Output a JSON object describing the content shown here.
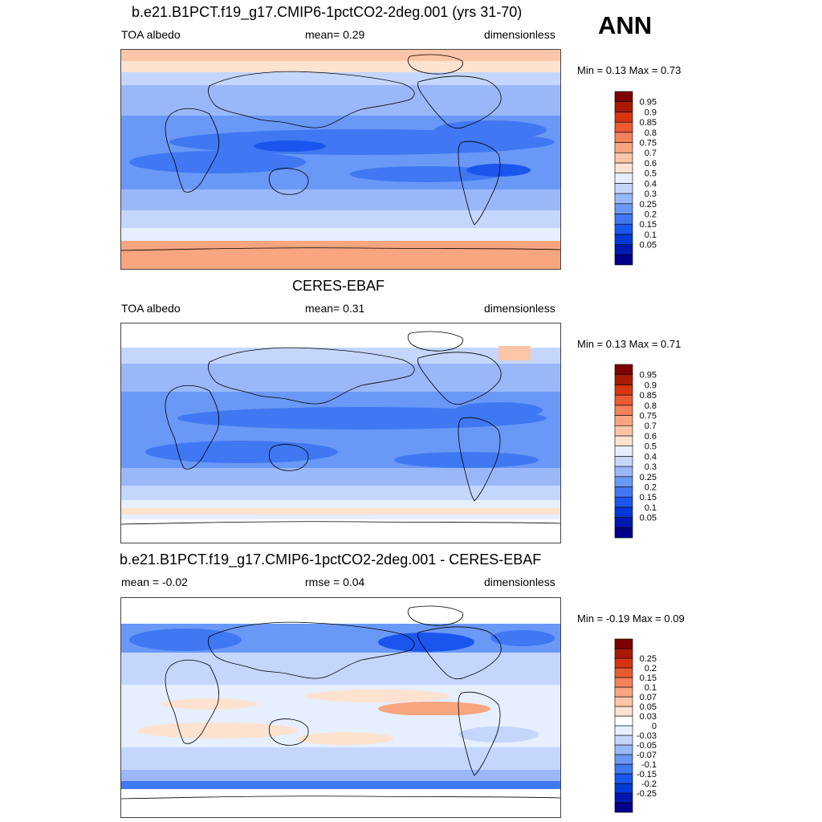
{
  "season": "ANN",
  "panels": [
    {
      "title": "b.e21.B1PCT.f19_g17.CMIP6-1pctCO2-2deg.001 (yrs 31-70)",
      "left_text": "TOA albedo",
      "center_text": "mean=   0.29",
      "right_text": "dimensionless",
      "minmax": "Min =   0.13 Max =   0.73",
      "colorbar": {
        "colors": [
          "#00008b",
          "#0018b0",
          "#0039d6",
          "#1a56ee",
          "#3f78f2",
          "#6a98f6",
          "#9ab8f9",
          "#c4d6fb",
          "#e6efff",
          "#fde2cf",
          "#fcc5a7",
          "#f9a57f",
          "#f4825a",
          "#ea5a33",
          "#d73511",
          "#a81a06",
          "#7c0100"
        ],
        "labels": [
          "0.05",
          "0.1",
          "0.15",
          "0.2",
          "0.25",
          "0.3",
          "0.4",
          "0.5",
          "0.6",
          "0.7",
          "0.75",
          "0.8",
          "0.85",
          "0.9",
          "0.95"
        ]
      }
    },
    {
      "title": "CERES-EBAF",
      "left_text": "TOA albedo",
      "center_text": "mean=   0.31",
      "right_text": "dimensionless",
      "minmax": "Min =   0.13 Max =   0.71",
      "colorbar": {
        "colors": [
          "#00008b",
          "#0018b0",
          "#0039d6",
          "#1a56ee",
          "#3f78f2",
          "#6a98f6",
          "#9ab8f9",
          "#c4d6fb",
          "#e6efff",
          "#fde2cf",
          "#fcc5a7",
          "#f9a57f",
          "#f4825a",
          "#ea5a33",
          "#d73511",
          "#a81a06",
          "#7c0100"
        ],
        "labels": [
          "0.05",
          "0.1",
          "0.15",
          "0.2",
          "0.25",
          "0.3",
          "0.4",
          "0.5",
          "0.6",
          "0.7",
          "0.75",
          "0.8",
          "0.85",
          "0.9",
          "0.95"
        ]
      }
    },
    {
      "title": "b.e21.B1PCT.f19_g17.CMIP6-1pctCO2-2deg.001 - CERES-EBAF",
      "left_text": "mean =  -0.02",
      "center_text": "rmse =   0.04",
      "right_text": "dimensionless",
      "minmax": "Min =  -0.19 Max =   0.09",
      "colorbar": {
        "colors": [
          "#00008b",
          "#0018b0",
          "#0039d6",
          "#1a56ee",
          "#3f78f2",
          "#6a98f6",
          "#9ab8f9",
          "#c4d6fb",
          "#e6efff",
          "#ffffff",
          "#fde2cf",
          "#fcc5a7",
          "#f9a57f",
          "#f4825a",
          "#ea5a33",
          "#d73511",
          "#a81a06",
          "#7c0100"
        ],
        "labels": [
          "-0.25",
          "-0.2",
          "-0.15",
          "-0.1",
          "-0.07",
          "-0.05",
          "-0.03",
          "0",
          "0.03",
          "0.05",
          "0.07",
          "0.1",
          "0.15",
          "0.2",
          "0.25"
        ]
      }
    }
  ]
}
